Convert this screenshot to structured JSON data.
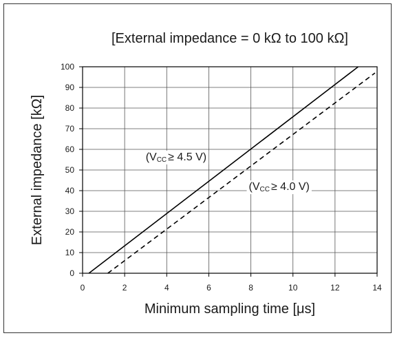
{
  "chart_data": {
    "type": "line",
    "title": "[External impedance = 0 kΩ to 100 kΩ]",
    "xlabel": "Minimum sampling time [μs]",
    "ylabel": "External impedance [kΩ]",
    "xlim": [
      0,
      14
    ],
    "ylim": [
      0,
      100
    ],
    "x_ticks": [
      "0",
      "2",
      "4",
      "6",
      "8",
      "10",
      "12",
      "14"
    ],
    "y_ticks": [
      "0",
      "10",
      "20",
      "30",
      "40",
      "50",
      "60",
      "70",
      "80",
      "90",
      "100"
    ],
    "grid": true,
    "series": [
      {
        "name_main": "(V",
        "name_sub": "CC",
        "name_rest": "≥ 4.5 V)",
        "style": "solid",
        "color": "#000000",
        "x": [
          0.3,
          13.1
        ],
        "y": [
          0,
          100
        ]
      },
      {
        "name_main": "(V",
        "name_sub": "CC",
        "name_rest": "≥ 4.0 V)",
        "style": "dashed",
        "color": "#000000",
        "x": [
          1.2,
          13.9
        ],
        "y": [
          0,
          97
        ]
      }
    ]
  }
}
